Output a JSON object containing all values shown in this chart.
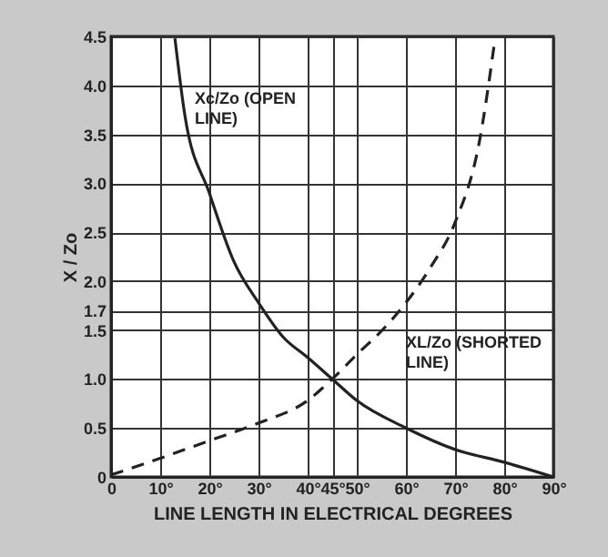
{
  "chart_data": {
    "type": "line",
    "xlabel": "LINE LENGTH IN ELECTRICAL DEGREES",
    "ylabel": "X / Zo",
    "xlim": [
      0,
      90
    ],
    "xticks": [
      {
        "value": 0,
        "label": "0"
      },
      {
        "value": 10,
        "label": "10°"
      },
      {
        "value": 20,
        "label": "20°"
      },
      {
        "value": 30,
        "label": "30°"
      },
      {
        "value": 40,
        "label": "40°"
      },
      {
        "value": 45,
        "label": "45°"
      },
      {
        "value": 50,
        "label": "50°"
      },
      {
        "value": 60,
        "label": "60°"
      },
      {
        "value": 70,
        "label": "70°"
      },
      {
        "value": 80,
        "label": "80°"
      },
      {
        "value": 90,
        "label": "90°"
      }
    ],
    "ylim": [
      0,
      4.5
    ],
    "yticks": [
      {
        "value": 0,
        "label": "0"
      },
      0.5,
      {
        "value": 1,
        "label": "1.0"
      },
      1.5,
      1.7,
      {
        "value": 2,
        "label": "2.0"
      },
      2.5,
      {
        "value": 3,
        "label": "3.0"
      },
      3.5,
      {
        "value": 4,
        "label": "4.0"
      },
      4.5
    ],
    "grid": true,
    "marker": "none",
    "series": [
      {
        "name": "Xc/Zo (OPEN LINE)",
        "color": "#222222",
        "line_style": "solid",
        "x": [
          13,
          15,
          20,
          25,
          30,
          35,
          40,
          45,
          50,
          60,
          70,
          80,
          90
        ],
        "values": [
          4.48,
          3.7,
          2.9,
          2.2,
          1.78,
          1.43,
          1.22,
          1.0,
          0.78,
          0.5,
          0.28,
          0.15,
          0
        ]
      },
      {
        "name": "XL/Zo (SHORTED LINE)",
        "color": "#222222",
        "line_style": "dashed",
        "x": [
          0,
          10,
          20,
          30,
          40,
          45,
          50,
          55,
          60,
          65,
          70,
          75,
          78
        ],
        "values": [
          0.02,
          0.19,
          0.37,
          0.55,
          0.78,
          1.0,
          1.25,
          1.49,
          1.78,
          2.14,
          2.6,
          3.44,
          4.43
        ]
      }
    ]
  }
}
